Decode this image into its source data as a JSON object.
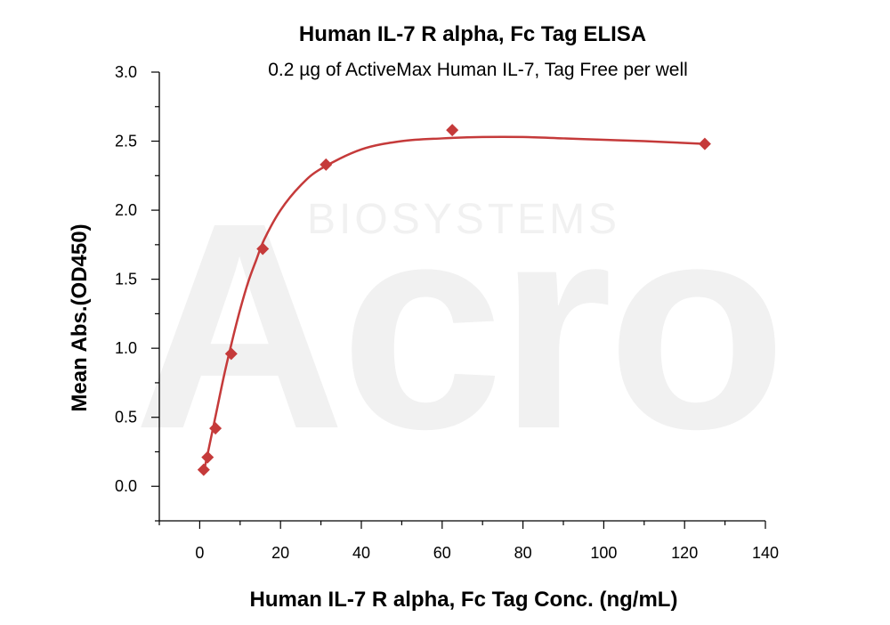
{
  "chart_data": {
    "type": "scatter",
    "title": "Human IL-7 R alpha, Fc Tag ELISA",
    "subtitle": "0.2 µg of ActiveMax Human IL-7, Tag Free per well",
    "xlabel": "Human IL-7 R alpha, Fc Tag Conc. (ng/mL)",
    "ylabel": "Mean Abs.(OD450)",
    "xlim": [
      -10,
      140
    ],
    "ylim": [
      -0.25,
      3.0
    ],
    "x_ticks": [
      "0",
      "20",
      "40",
      "60",
      "80",
      "100",
      "120",
      "140"
    ],
    "y_ticks": [
      "0.0",
      "0.5",
      "1.0",
      "1.5",
      "2.0",
      "2.5",
      "3.0"
    ],
    "grid": false,
    "legend": "none",
    "watermark": {
      "brand": "Acro",
      "sub": "BIOSYSTEMS"
    },
    "series": [
      {
        "marker": "diamond",
        "color": "#c53a3a",
        "points": [
          {
            "x": 0.98,
            "y": 0.12
          },
          {
            "x": 1.95,
            "y": 0.21
          },
          {
            "x": 3.9,
            "y": 0.42
          },
          {
            "x": 7.8,
            "y": 0.96
          },
          {
            "x": 15.6,
            "y": 1.72
          },
          {
            "x": 31.25,
            "y": 2.33
          },
          {
            "x": 62.5,
            "y": 2.58
          },
          {
            "x": 125,
            "y": 2.48
          }
        ]
      }
    ],
    "fit_curve": {
      "color": "#c53a3a",
      "points": [
        {
          "x": 0.98,
          "y": 0.1
        },
        {
          "x": 2,
          "y": 0.24
        },
        {
          "x": 4,
          "y": 0.52
        },
        {
          "x": 6,
          "y": 0.8
        },
        {
          "x": 8,
          "y": 1.05
        },
        {
          "x": 10,
          "y": 1.28
        },
        {
          "x": 12,
          "y": 1.48
        },
        {
          "x": 14,
          "y": 1.64
        },
        {
          "x": 16,
          "y": 1.79
        },
        {
          "x": 20,
          "y": 2.0
        },
        {
          "x": 25,
          "y": 2.18
        },
        {
          "x": 30,
          "y": 2.3
        },
        {
          "x": 40,
          "y": 2.44
        },
        {
          "x": 50,
          "y": 2.5
        },
        {
          "x": 60,
          "y": 2.52
        },
        {
          "x": 70,
          "y": 2.53
        },
        {
          "x": 80,
          "y": 2.53
        },
        {
          "x": 90,
          "y": 2.52
        },
        {
          "x": 100,
          "y": 2.51
        },
        {
          "x": 110,
          "y": 2.5
        },
        {
          "x": 125,
          "y": 2.48
        }
      ]
    }
  }
}
